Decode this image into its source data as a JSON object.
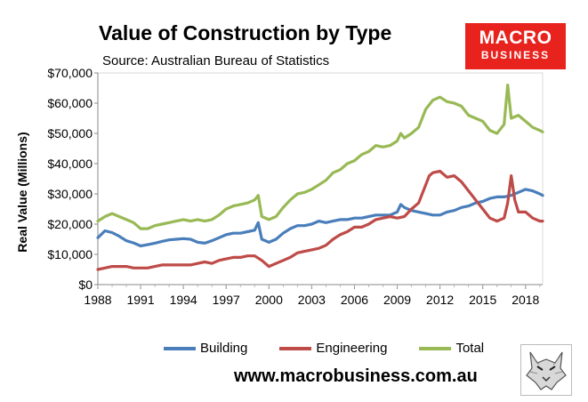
{
  "header": {
    "title": "Value of Construction by Type",
    "subtitle": "Source: Australian Bureau of Statistics"
  },
  "logo": {
    "top": "MACRO",
    "bottom": "BUSINESS"
  },
  "footer": {
    "url": "www.macrobusiness.com.au"
  },
  "colors": {
    "building": "#4a7ebb",
    "engineering": "#be4b48",
    "total": "#98b954",
    "logo": "#e8231e"
  },
  "chart_data": {
    "type": "line",
    "title": "Value of Construction by Type",
    "xlabel": "",
    "ylabel": "Real Value (Millions)",
    "xlim": [
      1988,
      2019.2
    ],
    "ylim": [
      0,
      70000
    ],
    "ytick_labels": [
      "$0",
      "$10,000",
      "$20,000",
      "$30,000",
      "$40,000",
      "$50,000",
      "$60,000",
      "$70,000"
    ],
    "yticks": [
      0,
      10000,
      20000,
      30000,
      40000,
      50000,
      60000,
      70000
    ],
    "xtick_labels": [
      "1988",
      "1991",
      "1994",
      "1997",
      "2000",
      "2003",
      "2006",
      "2009",
      "2012",
      "2015",
      "2018"
    ],
    "xticks": [
      1988,
      1991,
      1994,
      1997,
      2000,
      2003,
      2006,
      2009,
      2012,
      2015,
      2018
    ],
    "legend_position": "bottom",
    "series": [
      {
        "name": "Building",
        "color": "#4a7ebb",
        "x": [
          1988,
          1988.5,
          1989,
          1989.5,
          1990,
          1990.5,
          1991,
          1991.5,
          1992,
          1992.5,
          1993,
          1993.5,
          1994,
          1994.5,
          1995,
          1995.5,
          1996,
          1996.5,
          1997,
          1997.5,
          1998,
          1998.5,
          1999,
          1999.25,
          1999.5,
          2000,
          2000.5,
          2001,
          2001.5,
          2002,
          2002.5,
          2003,
          2003.5,
          2004,
          2004.5,
          2005,
          2005.5,
          2006,
          2006.5,
          2007,
          2007.5,
          2008,
          2008.5,
          2009,
          2009.25,
          2009.5,
          2010,
          2010.5,
          2011,
          2011.5,
          2012,
          2012.5,
          2013,
          2013.5,
          2014,
          2014.5,
          2015,
          2015.5,
          2016,
          2016.5,
          2017,
          2017.5,
          2018,
          2018.5,
          2019,
          2019.2
        ],
        "values": [
          15500,
          17800,
          17200,
          16000,
          14500,
          13800,
          12800,
          13200,
          13700,
          14300,
          14800,
          15000,
          15200,
          15000,
          14000,
          13700,
          14500,
          15500,
          16500,
          17000,
          17000,
          17500,
          18000,
          20500,
          15000,
          14000,
          15000,
          17000,
          18500,
          19500,
          19500,
          20000,
          21000,
          20500,
          21000,
          21500,
          21500,
          22000,
          22000,
          22500,
          23000,
          23000,
          23000,
          24000,
          26500,
          25500,
          24500,
          24000,
          23500,
          23000,
          23000,
          24000,
          24500,
          25500,
          26000,
          27000,
          27500,
          28500,
          29000,
          29000,
          29500,
          30500,
          31500,
          31000,
          30000,
          29500
        ]
      },
      {
        "name": "Engineering",
        "color": "#be4b48",
        "x": [
          1988,
          1988.5,
          1989,
          1989.5,
          1990,
          1990.5,
          1991,
          1991.5,
          1992,
          1992.5,
          1993,
          1993.5,
          1994,
          1994.5,
          1995,
          1995.5,
          1996,
          1996.5,
          1997,
          1997.5,
          1998,
          1998.5,
          1999,
          1999.5,
          2000,
          2000.5,
          2001,
          2001.5,
          2002,
          2002.5,
          2003,
          2003.5,
          2004,
          2004.5,
          2005,
          2005.5,
          2006,
          2006.5,
          2007,
          2007.5,
          2008,
          2008.5,
          2009,
          2009.5,
          2010,
          2010.5,
          2011,
          2011.25,
          2011.5,
          2012,
          2012.5,
          2013,
          2013.5,
          2014,
          2014.5,
          2015,
          2015.5,
          2016,
          2016.5,
          2016.75,
          2017,
          2017.25,
          2017.5,
          2018,
          2018.5,
          2019,
          2019.2
        ],
        "values": [
          5000,
          5500,
          6000,
          6000,
          6000,
          5500,
          5500,
          5500,
          6000,
          6500,
          6500,
          6500,
          6500,
          6500,
          7000,
          7500,
          7000,
          8000,
          8500,
          9000,
          9000,
          9500,
          9500,
          8000,
          6000,
          7000,
          8000,
          9000,
          10500,
          11000,
          11500,
          12000,
          13000,
          15000,
          16500,
          17500,
          19000,
          19000,
          20000,
          21500,
          22000,
          22500,
          22000,
          22500,
          25000,
          27000,
          33000,
          36000,
          37000,
          37500,
          35500,
          36000,
          34000,
          31000,
          28000,
          25000,
          22000,
          21000,
          22000,
          27000,
          36000,
          28000,
          24000,
          24000,
          22000,
          21000,
          21000
        ]
      },
      {
        "name": "Total",
        "color": "#98b954",
        "x": [
          1988,
          1988.5,
          1989,
          1989.5,
          1990,
          1990.5,
          1991,
          1991.5,
          1992,
          1992.5,
          1993,
          1993.5,
          1994,
          1994.5,
          1995,
          1995.5,
          1996,
          1996.5,
          1997,
          1997.5,
          1998,
          1998.5,
          1999,
          1999.25,
          1999.5,
          2000,
          2000.5,
          2001,
          2001.5,
          2002,
          2002.5,
          2003,
          2003.5,
          2004,
          2004.5,
          2005,
          2005.5,
          2006,
          2006.5,
          2007,
          2007.5,
          2008,
          2008.5,
          2009,
          2009.25,
          2009.5,
          2010,
          2010.5,
          2011,
          2011.5,
          2012,
          2012.5,
          2013,
          2013.5,
          2014,
          2014.5,
          2015,
          2015.5,
          2016,
          2016.5,
          2016.75,
          2017,
          2017.5,
          2018,
          2018.5,
          2019,
          2019.2
        ],
        "values": [
          21000,
          22500,
          23500,
          22500,
          21500,
          20500,
          18500,
          18500,
          19500,
          20000,
          20500,
          21000,
          21500,
          21000,
          21500,
          21000,
          21500,
          23000,
          25000,
          26000,
          26500,
          27000,
          28000,
          29500,
          22500,
          21500,
          22500,
          25500,
          28000,
          30000,
          30500,
          31500,
          33000,
          34500,
          37000,
          38000,
          40000,
          41000,
          43000,
          44000,
          46000,
          45500,
          46000,
          47500,
          50000,
          48500,
          50000,
          52000,
          58000,
          61000,
          62000,
          60500,
          60000,
          59000,
          56000,
          55000,
          54000,
          51000,
          50000,
          53000,
          66000,
          55000,
          56000,
          54000,
          52000,
          51000,
          50500
        ]
      }
    ]
  }
}
